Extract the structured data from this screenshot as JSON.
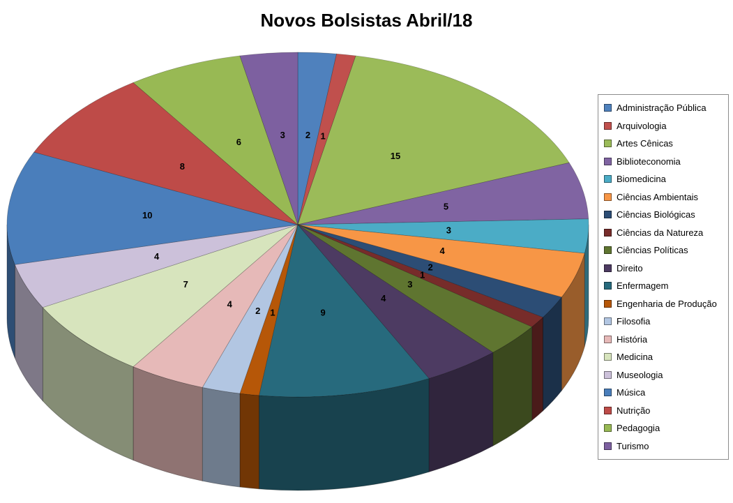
{
  "chart_data": {
    "type": "pie",
    "title": "Novos Bolsistas Abril/18",
    "is_3d": true,
    "start_angle_deg": 0,
    "direction": "clockwise",
    "legend_position": "right",
    "data_labels": "values",
    "grid": false,
    "categories": [
      "Administração Pública",
      "Arquivologia",
      "Artes Cênicas",
      "Biblioteconomia",
      "Biomedicina",
      "Ciências Ambientais",
      "Ciências Biológicas",
      "Ciências da Natureza",
      "Ciências Políticas",
      "Direito",
      "Enfermagem",
      "Engenharia de Produção",
      "Filosofia",
      "História",
      "Medicina",
      "Museologia",
      "Música",
      "Nutrição",
      "Pedagogia",
      "Turismo"
    ],
    "values": [
      2,
      1,
      15,
      5,
      3,
      4,
      2,
      1,
      3,
      4,
      9,
      1,
      2,
      4,
      7,
      4,
      10,
      8,
      6,
      3
    ],
    "colors": [
      "#4F81BD",
      "#C0504D",
      "#9BBB59",
      "#8064A2",
      "#4BACC6",
      "#F79646",
      "#2C4D75",
      "#772C2A",
      "#5F7530",
      "#4D3B62",
      "#276A7D",
      "#B65708",
      "#B2C6E2",
      "#E6B9B8",
      "#D7E4BD",
      "#CCC1DA",
      "#4A7EBB",
      "#BE4B48",
      "#98B954",
      "#7D60A0"
    ]
  }
}
